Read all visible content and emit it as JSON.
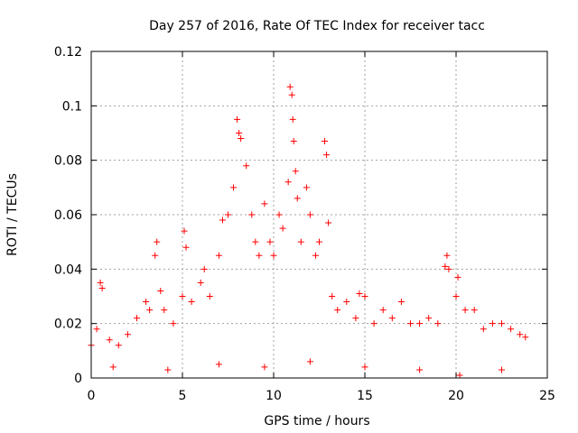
{
  "chart_data": {
    "type": "scatter",
    "title": "Day 257 of 2016, Rate Of TEC Index for receiver tacc",
    "xlabel": "GPS time / hours",
    "ylabel": "ROTI / TECUs",
    "xlim": [
      0,
      25
    ],
    "ylim": [
      0,
      0.12
    ],
    "xticks": [
      0,
      5,
      10,
      15,
      20,
      25
    ],
    "xtick_labels": [
      "0",
      "5",
      "10",
      "15",
      "20",
      "25"
    ],
    "yticks": [
      0,
      0.02,
      0.04,
      0.06,
      0.08,
      0.1,
      0.12
    ],
    "ytick_labels": [
      "0",
      "0.02",
      "0.04",
      "0.06",
      "0.08",
      "0.1",
      "0.12"
    ],
    "grid": true,
    "marker": "+",
    "color": "#ff0000",
    "series": [
      {
        "name": "ROTI",
        "points": [
          [
            0.0,
            0.012
          ],
          [
            0.3,
            0.018
          ],
          [
            0.5,
            0.035
          ],
          [
            0.6,
            0.033
          ],
          [
            1.0,
            0.014
          ],
          [
            1.5,
            0.012
          ],
          [
            2.0,
            0.016
          ],
          [
            2.5,
            0.022
          ],
          [
            3.0,
            0.028
          ],
          [
            3.2,
            0.025
          ],
          [
            3.5,
            0.045
          ],
          [
            3.6,
            0.05
          ],
          [
            3.8,
            0.032
          ],
          [
            4.0,
            0.025
          ],
          [
            4.5,
            0.02
          ],
          [
            5.0,
            0.03
          ],
          [
            5.1,
            0.054
          ],
          [
            5.2,
            0.048
          ],
          [
            5.5,
            0.028
          ],
          [
            6.0,
            0.035
          ],
          [
            6.2,
            0.04
          ],
          [
            6.5,
            0.03
          ],
          [
            7.0,
            0.045
          ],
          [
            7.2,
            0.058
          ],
          [
            7.5,
            0.06
          ],
          [
            7.8,
            0.07
          ],
          [
            8.0,
            0.095
          ],
          [
            8.1,
            0.09
          ],
          [
            8.2,
            0.088
          ],
          [
            8.5,
            0.078
          ],
          [
            8.8,
            0.06
          ],
          [
            9.0,
            0.05
          ],
          [
            9.2,
            0.045
          ],
          [
            9.5,
            0.064
          ],
          [
            9.8,
            0.05
          ],
          [
            10.0,
            0.045
          ],
          [
            10.3,
            0.06
          ],
          [
            10.5,
            0.055
          ],
          [
            10.8,
            0.072
          ],
          [
            10.9,
            0.107
          ],
          [
            11.0,
            0.104
          ],
          [
            11.05,
            0.095
          ],
          [
            11.1,
            0.087
          ],
          [
            11.2,
            0.076
          ],
          [
            11.3,
            0.066
          ],
          [
            11.5,
            0.05
          ],
          [
            11.8,
            0.07
          ],
          [
            12.0,
            0.06
          ],
          [
            12.3,
            0.045
          ],
          [
            12.5,
            0.05
          ],
          [
            12.8,
            0.087
          ],
          [
            12.9,
            0.082
          ],
          [
            13.0,
            0.057
          ],
          [
            13.2,
            0.03
          ],
          [
            13.5,
            0.025
          ],
          [
            14.0,
            0.028
          ],
          [
            14.5,
            0.022
          ],
          [
            14.7,
            0.031
          ],
          [
            15.0,
            0.03
          ],
          [
            15.5,
            0.02
          ],
          [
            16.0,
            0.025
          ],
          [
            16.5,
            0.022
          ],
          [
            17.0,
            0.028
          ],
          [
            17.5,
            0.02
          ],
          [
            18.0,
            0.02
          ],
          [
            18.5,
            0.022
          ],
          [
            19.0,
            0.02
          ],
          [
            19.4,
            0.041
          ],
          [
            19.5,
            0.045
          ],
          [
            19.6,
            0.04
          ],
          [
            20.0,
            0.03
          ],
          [
            20.1,
            0.037
          ],
          [
            20.5,
            0.025
          ],
          [
            21.0,
            0.025
          ],
          [
            21.5,
            0.018
          ],
          [
            22.0,
            0.02
          ],
          [
            22.5,
            0.02
          ],
          [
            23.0,
            0.018
          ],
          [
            23.5,
            0.016
          ],
          [
            23.8,
            0.015
          ],
          [
            1.2,
            0.004
          ],
          [
            4.2,
            0.003
          ],
          [
            7.0,
            0.005
          ],
          [
            9.5,
            0.004
          ],
          [
            12.0,
            0.006
          ],
          [
            15.0,
            0.004
          ],
          [
            18.0,
            0.003
          ],
          [
            20.2,
            0.001
          ],
          [
            22.5,
            0.003
          ]
        ]
      }
    ]
  }
}
